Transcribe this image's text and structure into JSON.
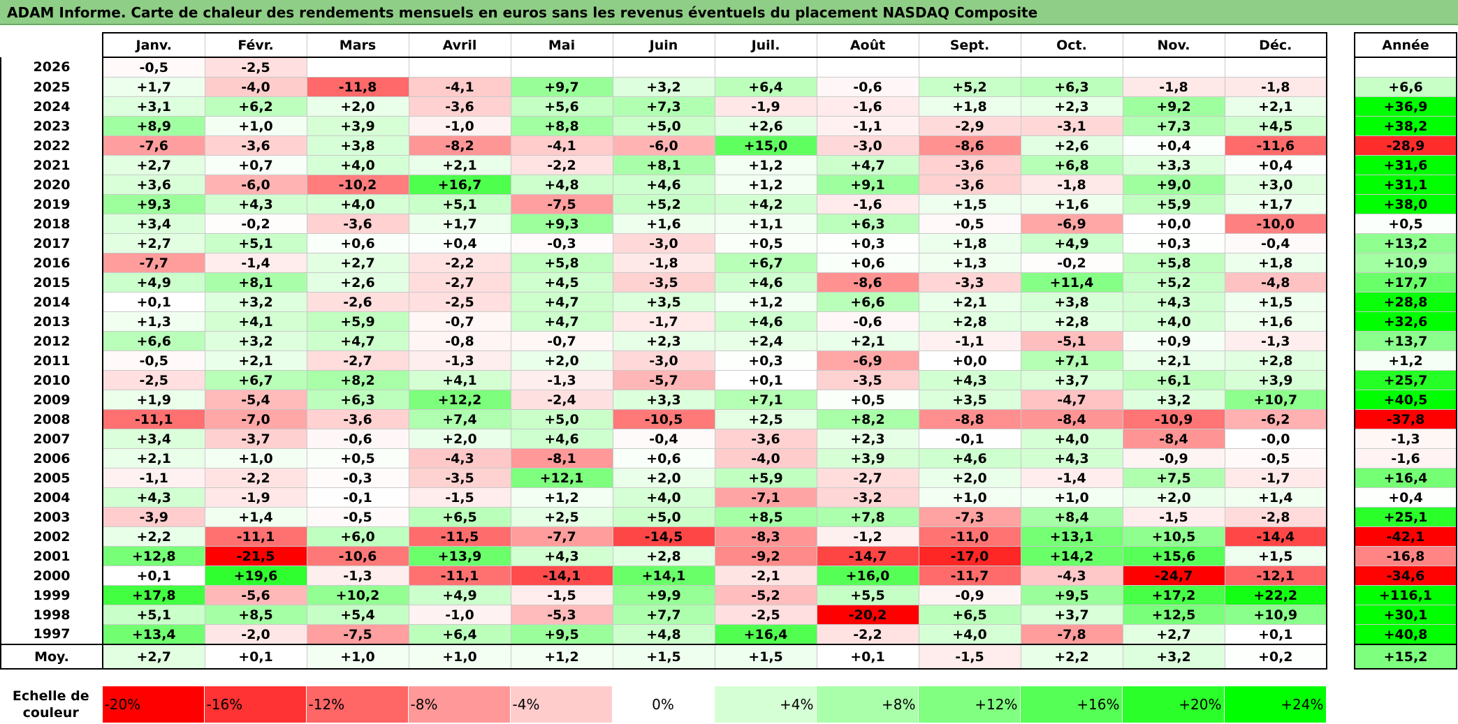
{
  "title": "ADAM Informe. Carte de chaleur des rendements mensuels en euros sans les revenus éventuels du placement NASDAQ Composite",
  "chart_data": {
    "type": "heatmap",
    "title": "ADAM Informe. Carte de chaleur des rendements mensuels en euros sans les revenus éventuels du placement NASDAQ Composite",
    "months": [
      "Janv.",
      "Févr.",
      "Mars",
      "Avril",
      "Mai",
      "Juin",
      "Juil.",
      "Août",
      "Sept.",
      "Oct.",
      "Nov.",
      "Déc."
    ],
    "annual_header": "Année",
    "rows": [
      {
        "year": "2026",
        "months": [
          "-0,5",
          "-2,5",
          "",
          "",
          "",
          "",
          "",
          "",
          "",
          "",
          "",
          ""
        ],
        "annual": ""
      },
      {
        "year": "2025",
        "months": [
          "+1,7",
          "-4,0",
          "-11,8",
          "-4,1",
          "+9,7",
          "+3,2",
          "+6,4",
          "-0,6",
          "+5,2",
          "+6,3",
          "-1,8",
          "-1,8"
        ],
        "annual": "+6,6"
      },
      {
        "year": "2024",
        "months": [
          "+3,1",
          "+6,2",
          "+2,0",
          "-3,6",
          "+5,6",
          "+7,3",
          "-1,9",
          "-1,6",
          "+1,8",
          "+2,3",
          "+9,2",
          "+2,1"
        ],
        "annual": "+36,9"
      },
      {
        "year": "2023",
        "months": [
          "+8,9",
          "+1,0",
          "+3,9",
          "-1,0",
          "+8,8",
          "+5,0",
          "+2,6",
          "-1,1",
          "-2,9",
          "-3,1",
          "+7,3",
          "+4,5"
        ],
        "annual": "+38,2"
      },
      {
        "year": "2022",
        "months": [
          "-7,6",
          "-3,6",
          "+3,8",
          "-8,2",
          "-4,1",
          "-6,0",
          "+15,0",
          "-3,0",
          "-8,6",
          "+2,6",
          "+0,4",
          "-11,6"
        ],
        "annual": "-28,9"
      },
      {
        "year": "2021",
        "months": [
          "+2,7",
          "+0,7",
          "+4,0",
          "+2,1",
          "-2,2",
          "+8,1",
          "+1,2",
          "+4,7",
          "-3,6",
          "+6,8",
          "+3,3",
          "+0,4"
        ],
        "annual": "+31,6"
      },
      {
        "year": "2020",
        "months": [
          "+3,6",
          "-6,0",
          "-10,2",
          "+16,7",
          "+4,8",
          "+4,6",
          "+1,2",
          "+9,1",
          "-3,6",
          "-1,8",
          "+9,0",
          "+3,0"
        ],
        "annual": "+31,1"
      },
      {
        "year": "2019",
        "months": [
          "+9,3",
          "+4,3",
          "+4,0",
          "+5,1",
          "-7,5",
          "+5,2",
          "+4,2",
          "-1,6",
          "+1,5",
          "+1,6",
          "+5,9",
          "+1,7"
        ],
        "annual": "+38,0"
      },
      {
        "year": "2018",
        "months": [
          "+3,4",
          "-0,2",
          "-3,6",
          "+1,7",
          "+9,3",
          "+1,6",
          "+1,1",
          "+6,3",
          "-0,5",
          "-6,9",
          "+0,0",
          "-10,0"
        ],
        "annual": "+0,5"
      },
      {
        "year": "2017",
        "months": [
          "+2,7",
          "+5,1",
          "+0,6",
          "+0,4",
          "-0,3",
          "-3,0",
          "+0,5",
          "+0,3",
          "+1,8",
          "+4,9",
          "+0,3",
          "-0,4"
        ],
        "annual": "+13,2"
      },
      {
        "year": "2016",
        "months": [
          "-7,7",
          "-1,4",
          "+2,7",
          "-2,2",
          "+5,8",
          "-1,8",
          "+6,7",
          "+0,6",
          "+1,3",
          "-0,2",
          "+5,8",
          "+1,8"
        ],
        "annual": "+10,9"
      },
      {
        "year": "2015",
        "months": [
          "+4,9",
          "+8,1",
          "+2,6",
          "-2,7",
          "+4,5",
          "-3,5",
          "+4,6",
          "-8,6",
          "-3,3",
          "+11,4",
          "+5,2",
          "-4,8"
        ],
        "annual": "+17,7"
      },
      {
        "year": "2014",
        "months": [
          "+0,1",
          "+3,2",
          "-2,6",
          "-2,5",
          "+4,7",
          "+3,5",
          "+1,2",
          "+6,6",
          "+2,1",
          "+3,8",
          "+4,3",
          "+1,5"
        ],
        "annual": "+28,8"
      },
      {
        "year": "2013",
        "months": [
          "+1,3",
          "+4,1",
          "+5,9",
          "-0,7",
          "+4,7",
          "-1,7",
          "+4,6",
          "-0,6",
          "+2,8",
          "+2,8",
          "+4,0",
          "+1,6"
        ],
        "annual": "+32,6"
      },
      {
        "year": "2012",
        "months": [
          "+6,6",
          "+3,2",
          "+4,7",
          "-0,8",
          "-0,7",
          "+2,3",
          "+2,4",
          "+2,1",
          "-1,1",
          "-5,1",
          "+0,9",
          "-1,3"
        ],
        "annual": "+13,7"
      },
      {
        "year": "2011",
        "months": [
          "-0,5",
          "+2,1",
          "-2,7",
          "-1,3",
          "+2,0",
          "-3,0",
          "+0,3",
          "-6,9",
          "+0,0",
          "+7,1",
          "+2,1",
          "+2,8"
        ],
        "annual": "+1,2"
      },
      {
        "year": "2010",
        "months": [
          "-2,5",
          "+6,7",
          "+8,2",
          "+4,1",
          "-1,3",
          "-5,7",
          "+0,1",
          "-3,5",
          "+4,3",
          "+3,7",
          "+6,1",
          "+3,9"
        ],
        "annual": "+25,7"
      },
      {
        "year": "2009",
        "months": [
          "+1,9",
          "-5,4",
          "+6,3",
          "+12,2",
          "-2,4",
          "+3,3",
          "+7,1",
          "+0,5",
          "+3,5",
          "-4,7",
          "+3,2",
          "+10,7"
        ],
        "annual": "+40,5"
      },
      {
        "year": "2008",
        "months": [
          "-11,1",
          "-7,0",
          "-3,6",
          "+7,4",
          "+5,0",
          "-10,5",
          "+2,5",
          "+8,2",
          "-8,8",
          "-8,4",
          "-10,9",
          "-6,2"
        ],
        "annual": "-37,8"
      },
      {
        "year": "2007",
        "months": [
          "+3,4",
          "-3,7",
          "-0,6",
          "+2,0",
          "+4,6",
          "-0,4",
          "-3,6",
          "+2,3",
          "-0,1",
          "+4,0",
          "-8,4",
          "-0,0"
        ],
        "annual": "-1,3"
      },
      {
        "year": "2006",
        "months": [
          "+2,1",
          "+1,0",
          "+0,5",
          "-4,3",
          "-8,1",
          "+0,6",
          "-4,0",
          "+3,9",
          "+4,6",
          "+4,3",
          "-0,9",
          "-0,5"
        ],
        "annual": "-1,6"
      },
      {
        "year": "2005",
        "months": [
          "-1,1",
          "-2,2",
          "-0,3",
          "-3,5",
          "+12,1",
          "+2,0",
          "+5,9",
          "-2,7",
          "+2,0",
          "-1,4",
          "+7,5",
          "-1,7"
        ],
        "annual": "+16,4"
      },
      {
        "year": "2004",
        "months": [
          "+4,3",
          "-1,9",
          "-0,1",
          "-1,5",
          "+1,2",
          "+4,0",
          "-7,1",
          "-3,2",
          "+1,0",
          "+1,0",
          "+2,0",
          "+1,4"
        ],
        "annual": "+0,4"
      },
      {
        "year": "2003",
        "months": [
          "-3,9",
          "+1,4",
          "-0,5",
          "+6,5",
          "+2,5",
          "+5,0",
          "+8,5",
          "+7,8",
          "-7,3",
          "+8,4",
          "-1,5",
          "-2,8"
        ],
        "annual": "+25,1"
      },
      {
        "year": "2002",
        "months": [
          "+2,2",
          "-11,1",
          "+6,0",
          "-11,5",
          "-7,7",
          "-14,5",
          "-8,3",
          "-1,2",
          "-11,0",
          "+13,1",
          "+10,5",
          "-14,4"
        ],
        "annual": "-42,1"
      },
      {
        "year": "2001",
        "months": [
          "+12,8",
          "-21,5",
          "-10,6",
          "+13,9",
          "+4,3",
          "+2,8",
          "-9,2",
          "-14,7",
          "-17,0",
          "+14,2",
          "+15,6",
          "+1,5"
        ],
        "annual": "-16,8"
      },
      {
        "year": "2000",
        "months": [
          "+0,1",
          "+19,6",
          "-1,3",
          "-11,1",
          "-14,1",
          "+14,1",
          "-2,1",
          "+16,0",
          "-11,7",
          "-4,3",
          "-24,7",
          "-12,1"
        ],
        "annual": "-34,6"
      },
      {
        "year": "1999",
        "months": [
          "+17,8",
          "-5,6",
          "+10,2",
          "+4,9",
          "-1,5",
          "+9,9",
          "-5,2",
          "+5,5",
          "-0,9",
          "+9,5",
          "+17,2",
          "+22,2"
        ],
        "annual": "+116,1"
      },
      {
        "year": "1998",
        "months": [
          "+5,1",
          "+8,5",
          "+5,4",
          "-1,0",
          "-5,3",
          "+7,7",
          "-2,5",
          "-20,2",
          "+6,5",
          "+3,7",
          "+12,5",
          "+10,9"
        ],
        "annual": "+30,1"
      },
      {
        "year": "1997",
        "months": [
          "+13,4",
          "-2,0",
          "-7,5",
          "+6,4",
          "+9,5",
          "+4,8",
          "+16,4",
          "-2,2",
          "+4,0",
          "-7,8",
          "+2,7",
          "+0,1"
        ],
        "annual": "+40,8"
      }
    ],
    "average": {
      "label": "Moy.",
      "months": [
        "+2,7",
        "+0,1",
        "+1,0",
        "+1,0",
        "+1,2",
        "+1,5",
        "+1,5",
        "+0,1",
        "-1,5",
        "+2,2",
        "+3,2",
        "+0,2"
      ],
      "annual": "+15,2"
    },
    "scale": {
      "label": "Echelle de couleur",
      "steps": [
        {
          "text": "-20%",
          "value": -20
        },
        {
          "text": "-16%",
          "value": -16
        },
        {
          "text": "-12%",
          "value": -12
        },
        {
          "text": "-8%",
          "value": -8
        },
        {
          "text": "-4%",
          "value": -4
        },
        {
          "text": "0%",
          "value": 0
        },
        {
          "text": "+4%",
          "value": 4
        },
        {
          "text": "+8%",
          "value": 8
        },
        {
          "text": "+12%",
          "value": 12
        },
        {
          "text": "+16%",
          "value": 16
        },
        {
          "text": "+20%",
          "value": 20
        },
        {
          "text": "+24%",
          "value": 24
        }
      ]
    },
    "colors": {
      "neutral": "#ffffff",
      "max_negative": "#ff0000",
      "max_positive": "#00ff00",
      "title_background": "#8fce86"
    }
  }
}
